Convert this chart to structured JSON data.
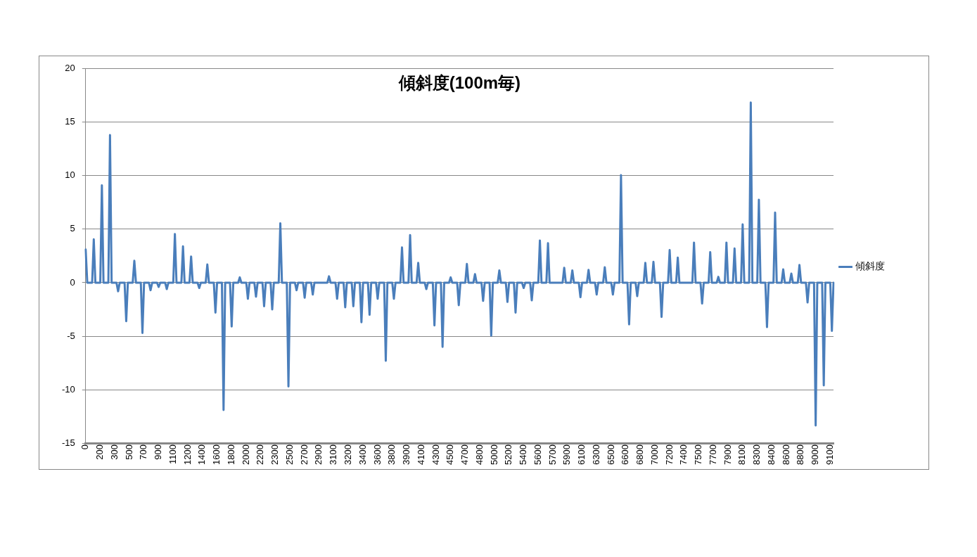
{
  "chart_data": {
    "type": "line",
    "title": "傾斜度(100m毎)",
    "categories": [
      "0",
      null,
      null,
      null,
      null,
      null,
      null,
      null,
      null,
      "200",
      null,
      null,
      null,
      null,
      null,
      null,
      null,
      null,
      "300",
      null,
      null,
      null,
      null,
      null,
      null,
      null,
      null,
      "500",
      null,
      null,
      null,
      null,
      null,
      null,
      null,
      null,
      "700",
      null,
      null,
      null,
      null,
      null,
      null,
      null,
      null,
      "900",
      null,
      null,
      null,
      null,
      null,
      null,
      null,
      null,
      "1100",
      null,
      null,
      null,
      null,
      null,
      null,
      null,
      null,
      "1200",
      null,
      null,
      null,
      null,
      null,
      null,
      null,
      null,
      "1400",
      null,
      null,
      null,
      null,
      null,
      null,
      null,
      null,
      "1600",
      null,
      null,
      null,
      null,
      null,
      null,
      null,
      null,
      "1800",
      null,
      null,
      null,
      null,
      null,
      null,
      null,
      null,
      "2000",
      null,
      null,
      null,
      null,
      null,
      null,
      null,
      null,
      "2200",
      null,
      null,
      null,
      null,
      null,
      null,
      null,
      null,
      "2300",
      null,
      null,
      null,
      null,
      null,
      null,
      null,
      null,
      "2500",
      null,
      null,
      null,
      null,
      null,
      null,
      null,
      null,
      "2700",
      null,
      null,
      null,
      null,
      null,
      null,
      null,
      null,
      "2900",
      null,
      null,
      null,
      null,
      null,
      null,
      null,
      null,
      "3100",
      null,
      null,
      null,
      null,
      null,
      null,
      null,
      null,
      "3200",
      null,
      null,
      null,
      null,
      null,
      null,
      null,
      null,
      "3400",
      null,
      null,
      null,
      null,
      null,
      null,
      null,
      null,
      "3600",
      null,
      null,
      null,
      null,
      null,
      null,
      null,
      null,
      "3800",
      null,
      null,
      null,
      null,
      null,
      null,
      null,
      null,
      "3900",
      null,
      null,
      null,
      null,
      null,
      null,
      null,
      null,
      "4100",
      null,
      null,
      null,
      null,
      null,
      null,
      null,
      null,
      "4300",
      null,
      null,
      null,
      null,
      null,
      null,
      null,
      null,
      "4500",
      null,
      null,
      null,
      null,
      null,
      null,
      null,
      null,
      "4700",
      null,
      null,
      null,
      null,
      null,
      null,
      null,
      null,
      "4800",
      null,
      null,
      null,
      null,
      null,
      null,
      null,
      null,
      "5000",
      null,
      null,
      null,
      null,
      null,
      null,
      null,
      null,
      "5200",
      null,
      null,
      null,
      null,
      null,
      null,
      null,
      null,
      "5400",
      null,
      null,
      null,
      null,
      null,
      null,
      null,
      null,
      "5600",
      null,
      null,
      null,
      null,
      null,
      null,
      null,
      null,
      "5700",
      null,
      null,
      null,
      null,
      null,
      null,
      null,
      null,
      "5900",
      null,
      null,
      null,
      null,
      null,
      null,
      null,
      null,
      "6100",
      null,
      null,
      null,
      null,
      null,
      null,
      null,
      null,
      "6300",
      null,
      null,
      null,
      null,
      null,
      null,
      null,
      null,
      "6500",
      null,
      null,
      null,
      null,
      null,
      null,
      null,
      null,
      "6600",
      null,
      null,
      null,
      null,
      null,
      null,
      null,
      null,
      "6800",
      null,
      null,
      null,
      null,
      null,
      null,
      null,
      null,
      "7000",
      null,
      null,
      null,
      null,
      null,
      null,
      null,
      null,
      "7200",
      null,
      null,
      null,
      null,
      null,
      null,
      null,
      null,
      "7400",
      null,
      null,
      null,
      null,
      null,
      null,
      null,
      null,
      "7500",
      null,
      null,
      null,
      null,
      null,
      null,
      null,
      null,
      "7700",
      null,
      null,
      null,
      null,
      null,
      null,
      null,
      null,
      "7900",
      null,
      null,
      null,
      null,
      null,
      null,
      null,
      null,
      "8100",
      null,
      null,
      null,
      null,
      null,
      null,
      null,
      null,
      "8300",
      null,
      null,
      null,
      null,
      null,
      null,
      null,
      null,
      "8400",
      null,
      null,
      null,
      null,
      null,
      null,
      null,
      null,
      "8600",
      null,
      null,
      null,
      null,
      null,
      null,
      null,
      null,
      "8800",
      null,
      null,
      null,
      null,
      null,
      null,
      null,
      null,
      "9000",
      null,
      null,
      null,
      null,
      null,
      null,
      null,
      null,
      "9100",
      null,
      null
    ],
    "series": [
      {
        "name": "傾斜度",
        "color": "#4a7ebb",
        "values": [
          3.1,
          0,
          0,
          0,
          0,
          4.05,
          0,
          0,
          0,
          0,
          9.1,
          0,
          0,
          0,
          0,
          13.8,
          0,
          0,
          0,
          0,
          -0.8,
          0,
          0,
          0,
          0,
          -3.6,
          0,
          0,
          0,
          0,
          2.05,
          0,
          0,
          0,
          0,
          -4.7,
          0,
          0,
          0,
          0,
          -0.7,
          0,
          0,
          0,
          0,
          -0.4,
          0,
          0,
          0,
          0,
          -0.6,
          0,
          0,
          0,
          0,
          4.55,
          0,
          0,
          0,
          0,
          3.4,
          0,
          0,
          0,
          0,
          2.45,
          0,
          0,
          0,
          0,
          -0.5,
          0,
          0,
          0,
          0,
          1.7,
          0,
          0,
          0,
          0,
          -2.8,
          0,
          0,
          0,
          0,
          -11.9,
          0,
          0,
          0,
          0,
          -4.1,
          0,
          0,
          0,
          0,
          0.5,
          0,
          0,
          0,
          0,
          -1.5,
          0,
          0,
          0,
          0,
          -1.3,
          0,
          0,
          0,
          0,
          -2.2,
          0,
          0,
          0,
          0,
          -2.5,
          0,
          0,
          0,
          0,
          5.55,
          0,
          0,
          0,
          0,
          -9.7,
          0,
          0,
          0,
          0,
          -0.7,
          0,
          0,
          0,
          0,
          -1.4,
          0,
          0,
          0,
          0,
          -1.1,
          0,
          0,
          0,
          0,
          0,
          0,
          0,
          0,
          0,
          0.6,
          0,
          0,
          0,
          0,
          -1.5,
          0,
          0,
          0,
          0,
          -2.3,
          0,
          0,
          0,
          0,
          -2.2,
          0,
          0,
          0,
          0,
          -3.7,
          0,
          0,
          0,
          0,
          -3.0,
          0,
          0,
          0,
          0,
          -1.5,
          0,
          0,
          0,
          0,
          -7.3,
          0,
          0,
          0,
          0,
          -1.5,
          0,
          0,
          0,
          0,
          3.3,
          0,
          0,
          0,
          0,
          4.45,
          0,
          0,
          0,
          0,
          1.85,
          0,
          0,
          0,
          0,
          -0.6,
          0,
          0,
          0,
          0,
          -4.0,
          0,
          0,
          0,
          0,
          -6.0,
          0,
          0,
          0,
          0,
          0.5,
          0,
          0,
          0,
          0,
          -2.1,
          0,
          0,
          0,
          0,
          1.75,
          0,
          0,
          0,
          0,
          0.8,
          0,
          0,
          0,
          0,
          -1.7,
          0,
          0,
          0,
          0,
          -4.95,
          0,
          0,
          0,
          0,
          1.15,
          0,
          0,
          0,
          0,
          -1.8,
          0,
          0,
          0,
          0,
          -2.8,
          0,
          0,
          0,
          0,
          -0.5,
          0,
          0,
          0,
          0,
          -1.65,
          0,
          0,
          0,
          0,
          3.95,
          0,
          0,
          0,
          0,
          3.7,
          0,
          0,
          0,
          0,
          0,
          0,
          0,
          0,
          0,
          1.4,
          0,
          0,
          0,
          0,
          1.15,
          0,
          0,
          0,
          0,
          -1.35,
          0,
          0,
          0,
          0,
          1.2,
          0,
          0,
          0,
          0,
          -1.1,
          0,
          0,
          0,
          0,
          1.45,
          0,
          0,
          0,
          0,
          -1.1,
          0,
          0,
          0,
          0,
          10.05,
          0,
          0,
          0,
          0,
          -3.9,
          0,
          0,
          0,
          0,
          -1.25,
          0,
          0,
          0,
          0,
          1.85,
          0,
          0,
          0,
          0,
          1.95,
          0,
          0,
          0,
          0,
          -3.2,
          0,
          0,
          0,
          0,
          3.05,
          0,
          0,
          0,
          0,
          2.35,
          0,
          0,
          0,
          0,
          0,
          0,
          0,
          0,
          0,
          3.75,
          0,
          0,
          0,
          0,
          -1.95,
          0,
          0,
          0,
          0,
          2.85,
          0,
          0,
          0,
          0,
          0.55,
          0,
          0,
          0,
          0,
          3.75,
          0,
          0,
          0,
          0,
          3.2,
          0,
          0,
          0,
          0,
          5.45,
          0,
          0,
          0,
          0,
          16.85,
          0,
          0,
          0,
          0,
          7.75,
          0,
          0,
          0,
          0,
          -4.15,
          0,
          0,
          0,
          0,
          6.55,
          0,
          0,
          0,
          0,
          1.25,
          0,
          0,
          0,
          0,
          0.85,
          0,
          0,
          0,
          0,
          1.65,
          0,
          0,
          0,
          0,
          -1.85,
          0,
          0,
          0,
          0,
          -13.35,
          0,
          0,
          0,
          0,
          -9.6,
          0,
          0,
          0,
          0,
          -4.5,
          0
        ]
      }
    ],
    "ylim": [
      -15,
      20
    ],
    "yticks": [
      -15,
      -10,
      -5,
      0,
      5,
      10,
      15,
      20
    ],
    "grid": "y",
    "legend": "right",
    "marker": "none",
    "line_style": "solid"
  }
}
